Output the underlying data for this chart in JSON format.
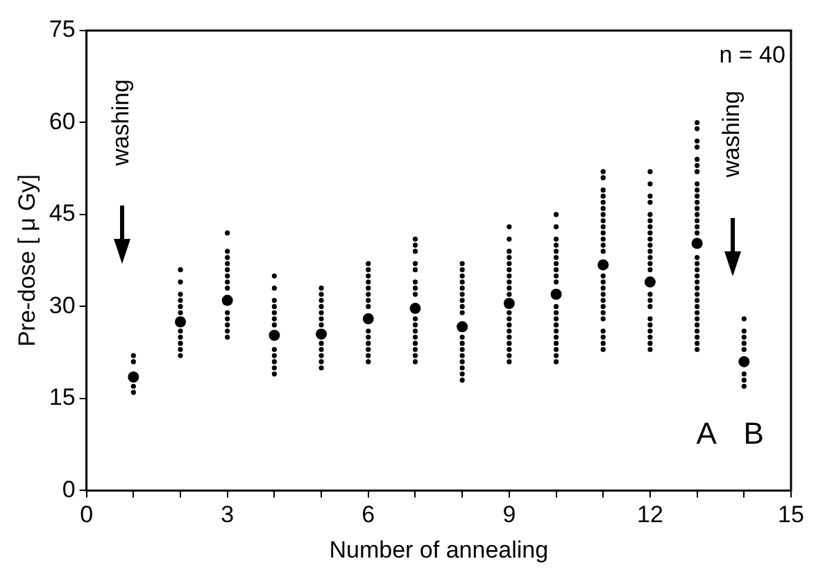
{
  "chart_data": {
    "type": "scatter",
    "xlabel": "Number of annealing",
    "ylabel": "Pre-dose [ μ Gy]",
    "xlim": [
      0,
      15
    ],
    "ylim": [
      0,
      75
    ],
    "xticks": [
      0,
      {
        "value": 1,
        "label": null
      },
      {
        "value": 2,
        "label": null
      },
      3,
      {
        "value": 4,
        "label": null
      },
      {
        "value": 5,
        "label": null
      },
      6,
      {
        "value": 7,
        "label": null
      },
      {
        "value": 8,
        "label": null
      },
      9,
      {
        "value": 10,
        "label": null
      },
      {
        "value": 11,
        "label": null
      },
      12,
      {
        "value": 13,
        "label": null
      },
      {
        "value": 14,
        "label": null
      },
      15
    ],
    "yticks": [
      0,
      15,
      30,
      45,
      60,
      75
    ],
    "grid": false,
    "legend": false,
    "marker": "circle",
    "annotations": [
      "washing",
      "washing",
      "n = 40",
      "A",
      "B"
    ],
    "series": [
      {
        "color": "#000000",
        "x": [
          1,
          1,
          1,
          1,
          2,
          2,
          2,
          2,
          2,
          2,
          2,
          2,
          2,
          2,
          2,
          3,
          3,
          3,
          3,
          3,
          3,
          3,
          3,
          3,
          3,
          3,
          3,
          3,
          4,
          4,
          4,
          4,
          4,
          4,
          4,
          4,
          4,
          4,
          4,
          4,
          5,
          5,
          5,
          5,
          5,
          5,
          5,
          5,
          5,
          5,
          5,
          5,
          6,
          6,
          6,
          6,
          6,
          6,
          6,
          6,
          6,
          6,
          6,
          6,
          6,
          6,
          7,
          7,
          7,
          7,
          7,
          7,
          7,
          7,
          7,
          7,
          7,
          7,
          7,
          7,
          7,
          7,
          8,
          8,
          8,
          8,
          8,
          8,
          8,
          8,
          8,
          8,
          8,
          8,
          8,
          8,
          8,
          8,
          8,
          9,
          9,
          9,
          9,
          9,
          9,
          9,
          9,
          9,
          9,
          9,
          9,
          9,
          9,
          9,
          9,
          9,
          9,
          9,
          10,
          10,
          10,
          10,
          10,
          10,
          10,
          10,
          10,
          10,
          10,
          10,
          10,
          10,
          10,
          10,
          10,
          10,
          10,
          10,
          11,
          11,
          11,
          11,
          11,
          11,
          11,
          11,
          11,
          11,
          11,
          11,
          11,
          11,
          11,
          11,
          11,
          11,
          11,
          11,
          11,
          11,
          11,
          11,
          11,
          12,
          12,
          12,
          12,
          12,
          12,
          12,
          12,
          12,
          12,
          12,
          12,
          12,
          12,
          12,
          12,
          12,
          12,
          12,
          12,
          12,
          12,
          12,
          13,
          13,
          13,
          13,
          13,
          13,
          13,
          13,
          13,
          13,
          13,
          13,
          13,
          13,
          13,
          13,
          13,
          13,
          13,
          13,
          13,
          13,
          13,
          13,
          13,
          13,
          13,
          13,
          13,
          13,
          13,
          13,
          14,
          14,
          14,
          14,
          14,
          14,
          14,
          14
        ],
        "values": [
          16,
          17,
          21,
          22,
          22,
          23,
          24,
          25,
          26,
          29,
          30,
          31,
          32,
          34,
          36,
          25,
          26,
          27,
          28,
          29,
          33,
          34,
          35,
          36,
          37,
          38,
          39,
          42,
          19,
          20,
          21,
          22,
          23,
          27,
          28,
          29,
          30,
          31,
          33,
          35,
          20,
          21,
          22,
          23,
          24,
          27,
          28,
          29,
          30,
          31,
          32,
          33,
          21,
          22,
          23,
          24,
          25,
          26,
          30,
          31,
          32,
          33,
          34,
          35,
          36,
          37,
          21,
          22,
          23,
          24,
          25,
          26,
          27,
          28,
          32,
          33,
          34,
          36,
          37,
          39,
          40,
          41,
          18,
          19,
          20,
          21,
          22,
          23,
          24,
          25,
          29,
          30,
          31,
          32,
          33,
          34,
          35,
          36,
          37,
          21,
          22,
          23,
          24,
          25,
          26,
          27,
          28,
          29,
          32,
          33,
          34,
          35,
          36,
          37,
          38,
          39,
          41,
          43,
          21,
          22,
          23,
          24,
          25,
          26,
          27,
          28,
          29,
          30,
          34,
          35,
          36,
          37,
          38,
          39,
          40,
          41,
          43,
          45,
          23,
          24,
          25,
          26,
          28,
          29,
          30,
          31,
          32,
          33,
          34,
          35,
          39,
          40,
          41,
          42,
          43,
          44,
          45,
          46,
          47,
          48,
          49,
          51,
          52,
          23,
          24,
          25,
          26,
          27,
          28,
          30,
          31,
          32,
          36,
          37,
          38,
          39,
          40,
          41,
          42,
          43,
          44,
          45,
          47,
          48,
          50,
          52,
          23,
          24,
          25,
          26,
          27,
          28,
          29,
          30,
          31,
          32,
          33,
          34,
          35,
          36,
          37,
          38,
          42,
          43,
          44,
          45,
          46,
          47,
          48,
          49,
          50,
          52,
          53,
          54,
          56,
          57,
          59,
          60,
          17,
          18,
          19,
          23,
          24,
          25,
          26,
          28
        ]
      },
      {
        "color": "#000000",
        "x": [
          1,
          2,
          3,
          4,
          5,
          6,
          7,
          8,
          9,
          10,
          11,
          12,
          13,
          14
        ],
        "values": [
          18.5,
          27.5,
          31,
          25.3,
          25.5,
          28,
          29.7,
          26.7,
          30.5,
          32,
          36.8,
          34,
          40.3,
          21
        ]
      }
    ]
  }
}
